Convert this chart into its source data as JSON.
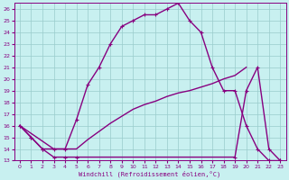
{
  "xlabel": "Windchill (Refroidissement éolien,°C)",
  "xlim": [
    -0.5,
    23.5
  ],
  "ylim": [
    13,
    26.5
  ],
  "xtick_labels": [
    "0",
    "1",
    "2",
    "3",
    "4",
    "5",
    "6",
    "7",
    "8",
    "9",
    "10",
    "11",
    "12",
    "13",
    "14",
    "15",
    "16",
    "17",
    "18",
    "19",
    "20",
    "21",
    "22",
    "23"
  ],
  "xtick_vals": [
    0,
    1,
    2,
    3,
    4,
    5,
    6,
    7,
    8,
    9,
    10,
    11,
    12,
    13,
    14,
    15,
    16,
    17,
    18,
    19,
    20,
    21,
    22,
    23
  ],
  "ytick_vals": [
    13,
    14,
    15,
    16,
    17,
    18,
    19,
    20,
    21,
    22,
    23,
    24,
    25,
    26
  ],
  "bg_color": "#c8f0f0",
  "grid_color": "#99cccc",
  "line_color": "#880080",
  "curve1_x": [
    0,
    1,
    2,
    3,
    4,
    5,
    6,
    7,
    8,
    9,
    10,
    11,
    12,
    13,
    14,
    15,
    16,
    17,
    18,
    19,
    20,
    21,
    22,
    23
  ],
  "curve1_y": [
    16,
    15,
    14,
    14,
    14,
    16.5,
    19.5,
    21,
    23,
    24.5,
    25,
    25.5,
    25.5,
    26,
    26.5,
    25,
    24,
    21,
    19.0,
    19.0,
    16.0,
    14.0,
    13.0,
    13.0
  ],
  "curve2_x": [
    0,
    1,
    2,
    3,
    4,
    5,
    19,
    20,
    21,
    22,
    23
  ],
  "curve2_y": [
    16,
    15,
    14,
    13.3,
    13.3,
    13.3,
    13.3,
    19.0,
    21.0,
    14.0,
    13.0
  ],
  "curve3_x": [
    0,
    3,
    4,
    5,
    6,
    7,
    8,
    9,
    10,
    11,
    12,
    13,
    14,
    15,
    16,
    17,
    18,
    19,
    20
  ],
  "curve3_y": [
    16,
    14,
    14,
    14,
    14.8,
    15.5,
    16.2,
    16.8,
    17.4,
    17.8,
    18.1,
    18.5,
    18.8,
    19.0,
    19.3,
    19.6,
    20.0,
    20.3,
    21.0
  ]
}
